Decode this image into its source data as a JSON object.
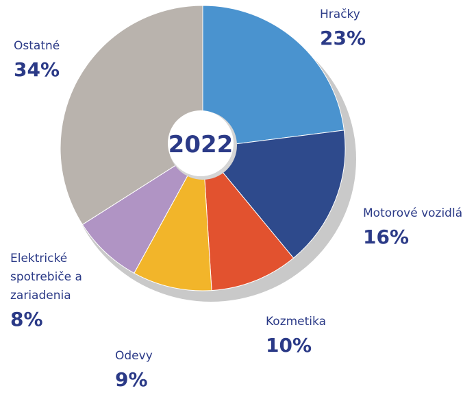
{
  "chart_data": {
    "type": "pie",
    "center_label": "2022",
    "categories": [
      "Hračky",
      "Motorové vozidlá",
      "Kozmetika",
      "Odevy",
      "Elektrické spotrebiče a zariadenia",
      "Ostatné"
    ],
    "values": [
      23,
      16,
      10,
      9,
      8,
      34
    ],
    "value_labels": [
      "23%",
      "16%",
      "10%",
      "9%",
      "8%",
      "34%"
    ],
    "colors": [
      "#4a93cf",
      "#2e4a8c",
      "#e2522f",
      "#f2b52a",
      "#b094c4",
      "#b9b3ad"
    ]
  }
}
